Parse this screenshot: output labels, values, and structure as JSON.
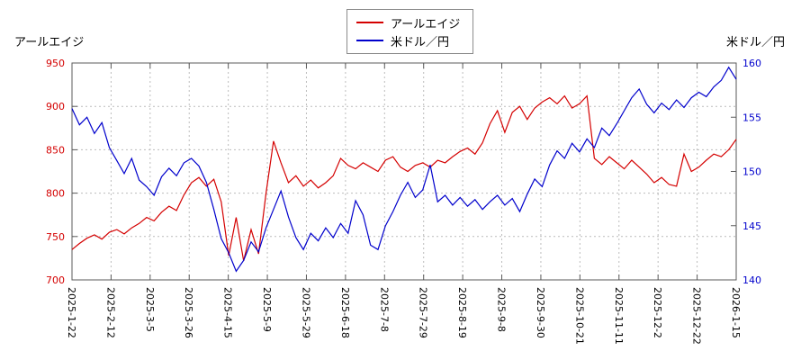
{
  "page": {
    "left_axis_title": "アールエイジ",
    "right_axis_title": "米ドル／円"
  },
  "legend": {
    "series1": "アールエイジ",
    "series2": "米ドル／円"
  },
  "chart_data": {
    "type": "line",
    "title": "",
    "grid": true,
    "legend_position": "top-center",
    "x_tick_labels": [
      "2025-1-22",
      "2025-2-12",
      "2025-3-5",
      "2025-3-26",
      "2025-4-15",
      "2025-5-9",
      "2025-5-29",
      "2025-6-18",
      "2025-7-8",
      "2025-7-29",
      "2025-8-19",
      "2025-9-8",
      "2025-9-30",
      "2025-10-21",
      "2025-11-11",
      "2025-12-2",
      "2025-12-22",
      "2026-1-15"
    ],
    "left_axis": {
      "label": "アールエイジ",
      "min": 700,
      "max": 950,
      "ticks": [
        700,
        750,
        800,
        850,
        900,
        950
      ],
      "color": "#d40000"
    },
    "right_axis": {
      "label": "米ドル／円",
      "min": 140,
      "max": 160,
      "ticks": [
        140,
        145,
        150,
        155,
        160
      ],
      "color": "#0000cc"
    },
    "series": [
      {
        "name": "アールエイジ",
        "axis": "left",
        "color": "#d40000",
        "values": [
          735,
          742,
          748,
          752,
          747,
          755,
          758,
          753,
          760,
          765,
          772,
          768,
          778,
          785,
          780,
          798,
          812,
          818,
          808,
          816,
          790,
          728,
          772,
          722,
          758,
          730,
          800,
          860,
          835,
          812,
          820,
          808,
          815,
          806,
          812,
          820,
          840,
          832,
          828,
          835,
          830,
          825,
          838,
          842,
          830,
          825,
          832,
          835,
          830,
          838,
          835,
          842,
          848,
          852,
          845,
          858,
          880,
          895,
          870,
          893,
          900,
          885,
          898,
          905,
          910,
          903,
          912,
          898,
          903,
          912,
          840,
          833,
          842,
          835,
          828,
          838,
          830,
          822,
          812,
          818,
          810,
          808,
          845,
          825,
          830,
          838,
          845,
          842,
          850,
          862
        ]
      },
      {
        "name": "米ドル／円",
        "axis": "right",
        "color": "#0000cc",
        "values": [
          155.8,
          154.3,
          155.0,
          153.5,
          154.5,
          152.2,
          151.0,
          149.8,
          151.2,
          149.2,
          148.6,
          147.8,
          149.5,
          150.3,
          149.6,
          150.8,
          151.2,
          150.5,
          149.0,
          146.5,
          143.8,
          142.5,
          140.8,
          141.8,
          143.5,
          142.6,
          144.8,
          146.5,
          148.2,
          145.8,
          143.9,
          142.8,
          144.3,
          143.6,
          144.8,
          143.9,
          145.2,
          144.3,
          147.3,
          146.0,
          143.2,
          142.8,
          145.0,
          146.3,
          147.8,
          149.0,
          147.6,
          148.3,
          150.6,
          147.2,
          147.8,
          146.9,
          147.6,
          146.8,
          147.4,
          146.5,
          147.2,
          147.8,
          146.9,
          147.5,
          146.3,
          147.9,
          149.3,
          148.6,
          150.6,
          151.9,
          151.2,
          152.6,
          151.8,
          153.0,
          152.2,
          154.0,
          153.3,
          154.4,
          155.6,
          156.8,
          157.6,
          156.2,
          155.4,
          156.3,
          155.7,
          156.6,
          155.9,
          156.8,
          157.3,
          156.9,
          157.8,
          158.4,
          159.6,
          158.5
        ]
      }
    ]
  }
}
